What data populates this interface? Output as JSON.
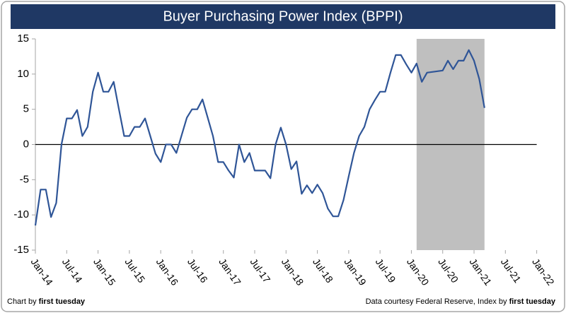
{
  "chart_data": {
    "type": "line",
    "title": "Buyer Purchasing Power Index (BPPI)",
    "footer_left": {
      "text": "Chart by",
      "bold": "first tuesday"
    },
    "footer_right": {
      "text": "Data courtesy Federal Reserve, Index by",
      "bold": "first tuesday"
    },
    "x": [
      "Jan-14",
      "Feb-14",
      "Mar-14",
      "Apr-14",
      "May-14",
      "Jun-14",
      "Jul-14",
      "Aug-14",
      "Sep-14",
      "Oct-14",
      "Nov-14",
      "Dec-14",
      "Jan-15",
      "Feb-15",
      "Mar-15",
      "Apr-15",
      "May-15",
      "Jun-15",
      "Jul-15",
      "Aug-15",
      "Sep-15",
      "Oct-15",
      "Nov-15",
      "Dec-15",
      "Jan-16",
      "Feb-16",
      "Mar-16",
      "Apr-16",
      "May-16",
      "Jun-16",
      "Jul-16",
      "Aug-16",
      "Sep-16",
      "Oct-16",
      "Nov-16",
      "Dec-16",
      "Jan-17",
      "Feb-17",
      "Mar-17",
      "Apr-17",
      "May-17",
      "Jun-17",
      "Jul-17",
      "Aug-17",
      "Sep-17",
      "Oct-17",
      "Nov-17",
      "Dec-17",
      "Jan-18",
      "Feb-18",
      "Mar-18",
      "Apr-18",
      "May-18",
      "Jun-18",
      "Jul-18",
      "Aug-18",
      "Sep-18",
      "Oct-18",
      "Nov-18",
      "Dec-18",
      "Jan-19",
      "Feb-19",
      "Mar-19",
      "Apr-19",
      "May-19",
      "Jun-19",
      "Jul-19",
      "Aug-19",
      "Sep-19",
      "Oct-19",
      "Nov-19",
      "Dec-19",
      "Jan-20",
      "Feb-20",
      "Mar-20",
      "Apr-20",
      "May-20",
      "Jun-20",
      "Jul-20",
      "Aug-20",
      "Sep-20",
      "Oct-20",
      "Nov-20",
      "Dec-20",
      "Jan-21",
      "Feb-21",
      "Mar-21"
    ],
    "series": [
      {
        "name": "BPPI",
        "color": "#2f5597",
        "values": [
          -11.5,
          -6.4,
          -6.4,
          -10.3,
          -8.3,
          0,
          3.7,
          3.7,
          4.9,
          1.2,
          2.5,
          7.5,
          10.2,
          7.5,
          7.5,
          8.9,
          5,
          1.2,
          1.2,
          2.5,
          2.5,
          3.7,
          1.2,
          -1.3,
          -2.5,
          0,
          0,
          -1.2,
          1.3,
          3.8,
          5,
          5,
          6.4,
          3.8,
          1.2,
          -2.5,
          -2.5,
          -3.7,
          -4.7,
          0,
          -2.5,
          -1.2,
          -3.7,
          -3.7,
          -3.7,
          -4.8,
          0,
          2.4,
          0,
          -3.5,
          -2.4,
          -7,
          -5.8,
          -6.9,
          -5.7,
          -6.9,
          -9.1,
          -10.2,
          -10.2,
          -7.9,
          -4.5,
          -1.2,
          1.2,
          2.5,
          5,
          6.3,
          7.5,
          7.5,
          10.2,
          12.7,
          12.7,
          11.4,
          10.2,
          11.5,
          8.9,
          10.2,
          10.3,
          10.4,
          10.5,
          11.9,
          10.7,
          11.9,
          11.9,
          13.4,
          11.9,
          9.3,
          5.2
        ]
      }
    ],
    "shade": {
      "range": [
        "Feb-20",
        "Mar-21"
      ],
      "color": "#bfbfbf"
    },
    "xlim": [
      "Jan-14",
      "Jan-22"
    ],
    "xticks": [
      "Jan-14",
      "Jul-14",
      "Jan-15",
      "Jul-15",
      "Jan-16",
      "Jul-16",
      "Jan-17",
      "Jul-17",
      "Jan-18",
      "Jul-18",
      "Jan-19",
      "Jul-19",
      "Jan-20",
      "Jul-20",
      "Jan-21",
      "Jul-21",
      "Jan-22"
    ],
    "ylim": [
      -15,
      15
    ],
    "yticks": [
      -15,
      -10,
      -5,
      0,
      5,
      10,
      15
    ],
    "grid": false
  }
}
